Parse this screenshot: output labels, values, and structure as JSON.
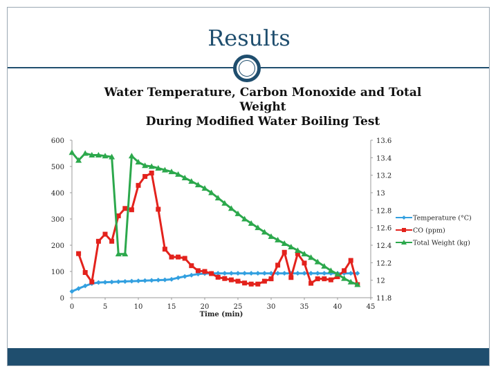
{
  "slide": {
    "title": "Results"
  },
  "chart_data": {
    "type": "line",
    "title_lines": [
      "Water Temperature, Carbon Monoxide and Total Weight",
      "During Modified Water Boiling Test"
    ],
    "xlabel": "Time (min)",
    "xlim": [
      0,
      45
    ],
    "x_ticks": [
      0,
      5,
      10,
      15,
      20,
      25,
      30,
      35,
      40,
      45
    ],
    "x_tick_labels": [
      "0",
      "5",
      "10",
      "15",
      "20",
      "25",
      "30",
      "35",
      "40",
      "45"
    ],
    "ylim_left": [
      0,
      600
    ],
    "y_left_ticks": [
      0,
      100,
      200,
      300,
      400,
      500,
      600
    ],
    "y_left_tick_labels": [
      "0",
      "100",
      "200",
      "300",
      "400",
      "500",
      "600"
    ],
    "ylim_right": [
      11.8,
      13.6
    ],
    "y_right_ticks": [
      11.8,
      12,
      12.2,
      12.4,
      12.6,
      12.8,
      13,
      13.2,
      13.4,
      13.6
    ],
    "y_right_tick_labels": [
      "11.8",
      "12",
      "12.2",
      "12.4",
      "12.6",
      "12.8",
      "13",
      "13.2",
      "13.4",
      "13.6"
    ],
    "legend_position": "right",
    "series": [
      {
        "name": "Temperature (°C)",
        "axis": "left",
        "color": "#33a0e0",
        "marker": "diamond",
        "x": [
          0,
          1,
          2,
          3,
          4,
          5,
          6,
          7,
          8,
          9,
          10,
          11,
          12,
          13,
          14,
          15,
          16,
          17,
          18,
          19,
          20,
          21,
          22,
          23,
          24,
          25,
          26,
          27,
          28,
          29,
          30,
          31,
          32,
          33,
          34,
          35,
          36,
          37,
          38,
          39,
          40,
          41,
          42,
          43
        ],
        "values": [
          24,
          35,
          45,
          54,
          58,
          59,
          60,
          61,
          62,
          63,
          64,
          65,
          66,
          67,
          68,
          70,
          76,
          81,
          86,
          90,
          92,
          93,
          93,
          93,
          93,
          93,
          93,
          93,
          93,
          93,
          93,
          93,
          93,
          93,
          93,
          93,
          93,
          93,
          93,
          93,
          93,
          93,
          93,
          93
        ]
      },
      {
        "name": "CO (ppm)",
        "axis": "left",
        "color": "#e3221c",
        "marker": "square",
        "x": [
          1,
          2,
          3,
          4,
          5,
          6,
          7,
          8,
          9,
          10,
          11,
          12,
          13,
          14,
          15,
          16,
          17,
          18,
          19,
          20,
          21,
          22,
          23,
          24,
          25,
          26,
          27,
          28,
          29,
          30,
          31,
          32,
          33,
          34,
          35,
          36,
          37,
          38,
          39,
          40,
          41,
          42,
          43
        ],
        "values": [
          168,
          96,
          60,
          215,
          242,
          215,
          312,
          340,
          335,
          428,
          462,
          475,
          337,
          185,
          155,
          155,
          150,
          122,
          103,
          100,
          92,
          78,
          73,
          68,
          63,
          56,
          52,
          52,
          63,
          72,
          124,
          173,
          77,
          168,
          132,
          55,
          72,
          72,
          68,
          80,
          103,
          142,
          50
        ]
      },
      {
        "name": "Total Weight (kg)",
        "axis": "right",
        "color": "#2ca84c",
        "marker": "triangle",
        "x": [
          0,
          1,
          2,
          3,
          4,
          5,
          6,
          7,
          8,
          9,
          10,
          11,
          12,
          13,
          14,
          15,
          16,
          17,
          18,
          19,
          20,
          21,
          22,
          23,
          24,
          25,
          26,
          27,
          28,
          29,
          30,
          31,
          32,
          33,
          34,
          35,
          36,
          37,
          38,
          39,
          40,
          41,
          42,
          43
        ],
        "values": [
          13.46,
          13.37,
          13.45,
          13.43,
          13.43,
          13.42,
          13.41,
          12.3,
          12.3,
          13.42,
          13.35,
          13.31,
          13.3,
          13.28,
          13.26,
          13.24,
          13.21,
          13.17,
          13.13,
          13.09,
          13.05,
          13.0,
          12.94,
          12.88,
          12.82,
          12.76,
          12.7,
          12.65,
          12.6,
          12.55,
          12.5,
          12.46,
          12.42,
          12.38,
          12.34,
          12.3,
          12.26,
          12.21,
          12.16,
          12.11,
          12.07,
          12.02,
          11.98,
          11.95
        ]
      }
    ]
  }
}
